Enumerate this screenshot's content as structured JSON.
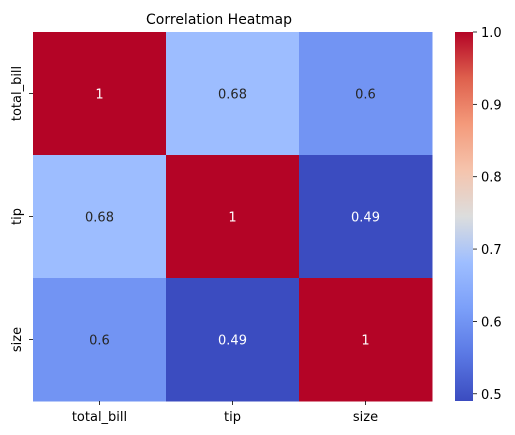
{
  "chart_data": {
    "type": "heatmap",
    "title": "Correlation Heatmap",
    "x_labels": [
      "total_bill",
      "tip",
      "size"
    ],
    "y_labels": [
      "total_bill",
      "tip",
      "size"
    ],
    "values": [
      [
        1,
        0.68,
        0.6
      ],
      [
        0.68,
        1,
        0.49
      ],
      [
        0.6,
        0.49,
        1
      ]
    ],
    "cell_labels": [
      [
        "1",
        "0.68",
        "0.6"
      ],
      [
        "0.68",
        "1",
        "0.49"
      ],
      [
        "0.6",
        "0.49",
        "1"
      ]
    ],
    "colormap": "coolwarm",
    "vmin": 0.49,
    "vmax": 1.0,
    "colorbar_ticks": [
      1.0,
      0.9,
      0.8,
      0.7,
      0.6,
      0.5
    ],
    "colorbar_tick_labels": [
      "1.0",
      "0.9",
      "0.8",
      "0.7",
      "0.6",
      "0.5"
    ]
  }
}
